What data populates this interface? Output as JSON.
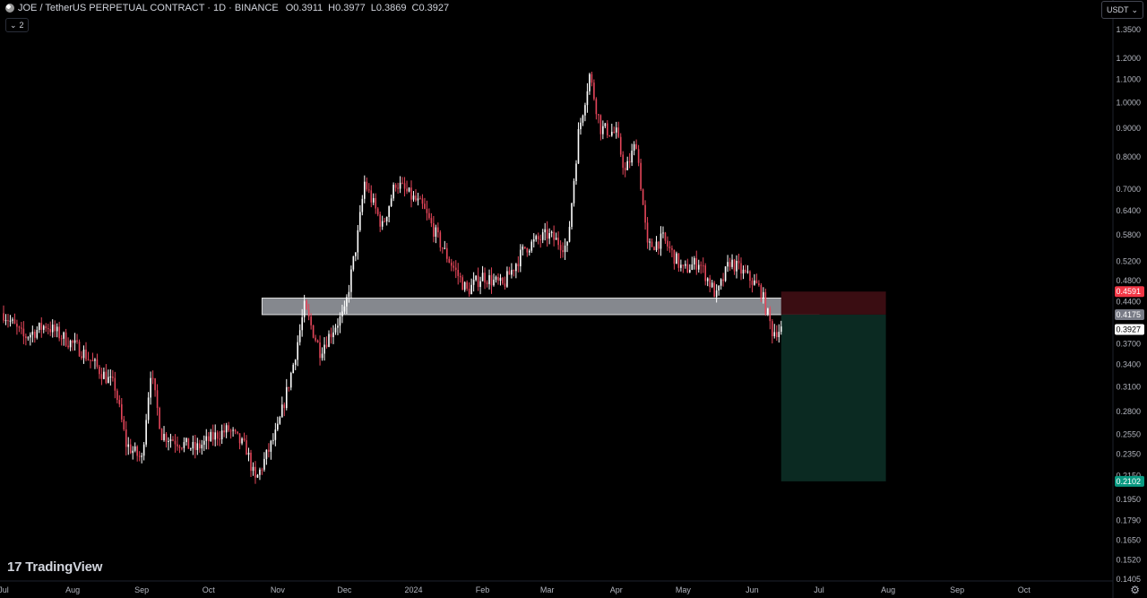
{
  "header": {
    "title": "JOE / TetherUS PERPETUAL CONTRACT · 1D · BINANCE",
    "open": "O0.3911",
    "high": "H0.3977",
    "low": "L0.3869",
    "close": "C0.3927",
    "indicators_count": "2"
  },
  "toolbar": {
    "currency": "USDT"
  },
  "brand": {
    "logo_text": "TradingView",
    "logo_mark": "17"
  },
  "icons": {
    "settings": "settings-icon",
    "symbol": "symbol-icon",
    "chevron": "chevron-down-icon"
  },
  "colors": {
    "background": "#000000",
    "candle_up": "#ffffff",
    "candle_down": "#e5465a",
    "zone_fill": "#b2b5be",
    "stop_zone": "#3a0d12",
    "target_zone": "#0b2a22",
    "label_stop": "#f23645",
    "label_entry": "#787b86",
    "label_last": "#ffffff",
    "label_target": "#089981"
  },
  "chart_data": {
    "type": "candlestick",
    "symbol": "JOE / TetherUS PERPETUAL CONTRACT",
    "interval": "1D",
    "exchange": "BINANCE",
    "y_scale": "log",
    "ylim": [
      0.1405,
      1.35
    ],
    "y_ticks": [
      "1.3500",
      "1.2000",
      "1.1000",
      "1.0000",
      "0.9000",
      "0.8000",
      "0.7000",
      "0.6400",
      "0.5800",
      "0.5200",
      "0.4800",
      "0.4400",
      "0.3700",
      "0.3400",
      "0.3100",
      "0.2800",
      "0.2550",
      "0.2350",
      "0.2150",
      "0.1950",
      "0.1790",
      "0.1650",
      "0.1520",
      "0.1405"
    ],
    "x_ticks": [
      "Jul",
      "Aug",
      "Sep",
      "Oct",
      "Nov",
      "Dec",
      "2024",
      "Feb",
      "Mar",
      "Apr",
      "May",
      "Jun",
      "Jul",
      "Aug",
      "Sep",
      "Oct"
    ],
    "x_range": [
      "2023-07-01",
      "2024-10-20"
    ],
    "price_path": [
      [
        "2023-07-01",
        0.42
      ],
      [
        "2023-07-10",
        0.38
      ],
      [
        "2023-07-20",
        0.4
      ],
      [
        "2023-08-05",
        0.36
      ],
      [
        "2023-08-20",
        0.31
      ],
      [
        "2023-08-25",
        0.245
      ],
      [
        "2023-09-01",
        0.23
      ],
      [
        "2023-09-05",
        0.33
      ],
      [
        "2023-09-10",
        0.255
      ],
      [
        "2023-09-25",
        0.24
      ],
      [
        "2023-10-05",
        0.255
      ],
      [
        "2023-10-10",
        0.26
      ],
      [
        "2023-10-18",
        0.24
      ],
      [
        "2023-10-22",
        0.21
      ],
      [
        "2023-11-01",
        0.26
      ],
      [
        "2023-11-08",
        0.34
      ],
      [
        "2023-11-13",
        0.43
      ],
      [
        "2023-11-20",
        0.36
      ],
      [
        "2023-11-27",
        0.4
      ],
      [
        "2023-12-01",
        0.42
      ],
      [
        "2023-12-07",
        0.58
      ],
      [
        "2023-12-10",
        0.72
      ],
      [
        "2023-12-18",
        0.6
      ],
      [
        "2023-12-24",
        0.72
      ],
      [
        "2024-01-05",
        0.65
      ],
      [
        "2024-01-15",
        0.54
      ],
      [
        "2024-01-25",
        0.46
      ],
      [
        "2024-02-01",
        0.49
      ],
      [
        "2024-02-10",
        0.47
      ],
      [
        "2024-02-20",
        0.55
      ],
      [
        "2024-03-01",
        0.58
      ],
      [
        "2024-03-10",
        0.55
      ],
      [
        "2024-03-15",
        0.88
      ],
      [
        "2024-03-20",
        1.12
      ],
      [
        "2024-03-25",
        0.9
      ],
      [
        "2024-04-01",
        0.88
      ],
      [
        "2024-04-05",
        0.75
      ],
      [
        "2024-04-10",
        0.85
      ],
      [
        "2024-04-15",
        0.55
      ],
      [
        "2024-04-22",
        0.57
      ],
      [
        "2024-05-01",
        0.5
      ],
      [
        "2024-05-08",
        0.52
      ],
      [
        "2024-05-16",
        0.45
      ],
      [
        "2024-05-22",
        0.52
      ],
      [
        "2024-06-01",
        0.48
      ],
      [
        "2024-06-05",
        0.46
      ],
      [
        "2024-06-10",
        0.39
      ],
      [
        "2024-06-14",
        0.3927
      ]
    ],
    "x_tick_dates": [
      "2023-07-01",
      "2023-08-01",
      "2023-09-01",
      "2023-10-01",
      "2023-11-01",
      "2023-12-01",
      "2024-01-01",
      "2024-02-01",
      "2024-03-01",
      "2024-04-01",
      "2024-05-01",
      "2024-06-01",
      "2024-07-01",
      "2024-08-01",
      "2024-09-01",
      "2024-10-01"
    ],
    "support_zone": {
      "from": "2023-10-25",
      "to": "2024-07-01",
      "low": 0.4175,
      "high": 0.447
    },
    "position": {
      "side": "short",
      "start": "2024-06-14",
      "end": "2024-07-31",
      "entry": 0.4175,
      "stop": 0.4591,
      "target": 0.2102
    },
    "price_labels": {
      "stop": "0.4591",
      "entry": "0.4175",
      "last": "0.3927",
      "target": "0.2102"
    }
  }
}
